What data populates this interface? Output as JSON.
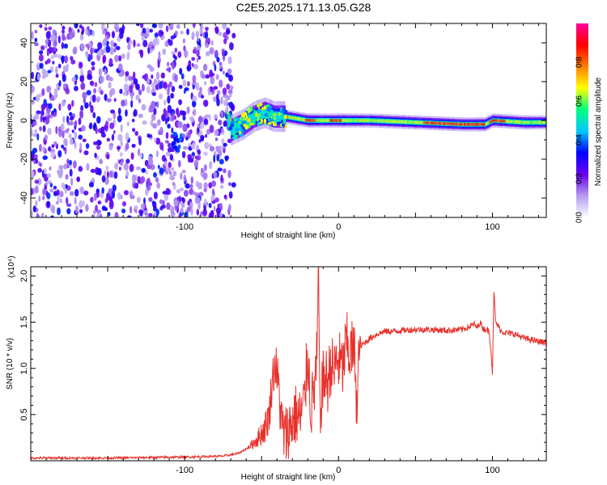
{
  "title": "C2E5.2025.171.13.05.G28",
  "chart_data": [
    {
      "type": "heatmap",
      "xlabel": "Height of straight line (km)",
      "ylabel": "Frequency (Hz)",
      "xlim": [
        -200,
        135
      ],
      "ylim": [
        -50,
        50
      ],
      "x_ticks": [
        -100,
        0,
        100
      ],
      "x_tick_labels": [
        "-100",
        "0",
        "100"
      ],
      "y_ticks": [
        -40,
        -20,
        0,
        20,
        40
      ],
      "y_tick_labels": [
        "-40",
        "-20",
        "0",
        "20",
        "40"
      ],
      "colorbar": {
        "label": "Normalized spectral amplitude",
        "range": [
          0.0,
          1.0
        ],
        "ticks": [
          0.0,
          0.2,
          0.4,
          0.6,
          0.8
        ],
        "tick_labels": [
          "0.0",
          "0.2",
          "0.4",
          "0.6",
          "0.8"
        ],
        "colormap": [
          "#ffffff",
          "#b59cf0",
          "#6a00f0",
          "#0000ff",
          "#00c8ff",
          "#00ff80",
          "#ffff00",
          "#ff7f00",
          "#ff0000",
          "#ff0099"
        ]
      },
      "noise_region_x": [
        -200,
        -72
      ],
      "transition_track": [
        [
          -70,
          -5
        ],
        [
          -62,
          -2
        ],
        [
          -55,
          2
        ],
        [
          -48,
          4
        ],
        [
          -42,
          2
        ],
        [
          -35,
          2
        ]
      ],
      "main_track": [
        [
          -35,
          2
        ],
        [
          -20,
          0
        ],
        [
          0,
          0
        ],
        [
          20,
          0
        ],
        [
          50,
          -1
        ],
        [
          80,
          -2
        ],
        [
          95,
          -2
        ],
        [
          100,
          0
        ],
        [
          120,
          -1
        ],
        [
          135,
          -1
        ]
      ],
      "hot_segments": [
        [
          -40,
          -33
        ],
        [
          -22,
          -15
        ],
        [
          -6,
          2
        ],
        [
          55,
          95
        ],
        [
          97,
          108
        ]
      ]
    },
    {
      "type": "line",
      "xlabel": "Height of straight line (km)",
      "ylabel": "SNR (10 * v/v)",
      "y_multiplier_label": "(x10⁴)",
      "xlim": [
        -200,
        135
      ],
      "ylim": [
        0,
        2.1
      ],
      "x_ticks": [
        -100,
        0,
        100
      ],
      "x_tick_labels": [
        "-100",
        "0",
        "100"
      ],
      "y_ticks": [
        0.5,
        1.0,
        1.5,
        2.0
      ],
      "y_tick_labels": [
        "0.5",
        "1.0",
        "1.5",
        "2.0"
      ],
      "series": [
        {
          "color": "#e8302a",
          "x": [
            -200,
            -150,
            -100,
            -75,
            -65,
            -58,
            -52,
            -48,
            -45,
            -43,
            -41,
            -39,
            -37,
            -35,
            -32,
            -28,
            -25,
            -22,
            -20,
            -18,
            -16,
            -14,
            -13,
            -12,
            -11,
            -9,
            -7,
            -5,
            -3,
            -1,
            1,
            3,
            5,
            7,
            9,
            11,
            12,
            13,
            15,
            20,
            25,
            30,
            35,
            40,
            50,
            60,
            70,
            80,
            85,
            88,
            90,
            92,
            94,
            96,
            98,
            99,
            100,
            101,
            102,
            104,
            106,
            110,
            115,
            120,
            125,
            130,
            135
          ],
          "y": [
            0.03,
            0.03,
            0.04,
            0.05,
            0.08,
            0.15,
            0.25,
            0.35,
            0.5,
            0.9,
            1.05,
            0.8,
            0.4,
            0.25,
            0.35,
            0.5,
            0.45,
            0.65,
            1.2,
            0.55,
            0.75,
            1.1,
            2.1,
            0.3,
            0.8,
            0.9,
            0.85,
            1.05,
            0.95,
            1.1,
            1.05,
            1.0,
            1.3,
            1.15,
            1.2,
            1.1,
            0.4,
            1.2,
            1.25,
            1.32,
            1.37,
            1.4,
            1.4,
            1.41,
            1.42,
            1.42,
            1.41,
            1.42,
            1.45,
            1.48,
            1.44,
            1.5,
            1.43,
            1.42,
            1.4,
            1.2,
            0.95,
            1.85,
            1.5,
            1.45,
            1.4,
            1.38,
            1.37,
            1.33,
            1.31,
            1.29,
            1.28
          ]
        }
      ]
    }
  ]
}
